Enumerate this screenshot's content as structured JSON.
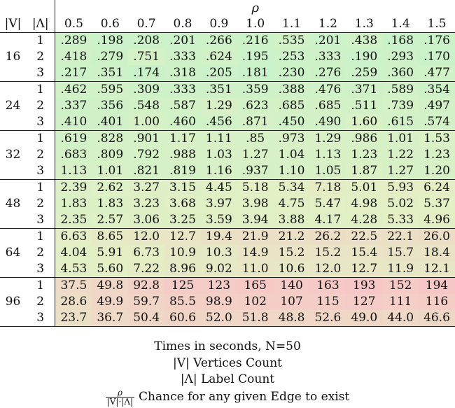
{
  "header": {
    "rho": "ρ",
    "v_label": "|V|",
    "l_label": "|Λ|",
    "columns": [
      "0.5",
      "0.6",
      "0.7",
      "0.8",
      "0.9",
      "1.0",
      "1.1",
      "1.2",
      "1.3",
      "1.4",
      "1.5"
    ]
  },
  "groups": [
    {
      "v": "16",
      "rows": [
        {
          "l": "1",
          "values": [
            ".289",
            ".198",
            ".208",
            ".201",
            ".266",
            ".216",
            ".535",
            ".201",
            ".438",
            ".168",
            ".176"
          ]
        },
        {
          "l": "2",
          "values": [
            ".418",
            ".279",
            ".751",
            ".333",
            ".624",
            ".195",
            ".253",
            ".333",
            ".190",
            ".293",
            ".170"
          ]
        },
        {
          "l": "3",
          "values": [
            ".217",
            ".351",
            ".174",
            ".318",
            ".205",
            ".181",
            ".230",
            ".276",
            ".259",
            ".360",
            ".477"
          ]
        }
      ]
    },
    {
      "v": "24",
      "rows": [
        {
          "l": "1",
          "values": [
            ".462",
            ".595",
            ".309",
            ".333",
            ".351",
            ".359",
            ".388",
            ".476",
            ".371",
            ".589",
            ".354"
          ]
        },
        {
          "l": "2",
          "values": [
            ".337",
            ".356",
            ".548",
            ".587",
            "1.29",
            ".623",
            ".685",
            ".685",
            ".511",
            ".739",
            ".497"
          ]
        },
        {
          "l": "3",
          "values": [
            ".410",
            ".401",
            "1.00",
            ".460",
            ".456",
            ".871",
            ".450",
            ".490",
            "1.60",
            ".615",
            ".574"
          ]
        }
      ]
    },
    {
      "v": "32",
      "rows": [
        {
          "l": "1",
          "values": [
            ".619",
            ".828",
            ".901",
            "1.17",
            "1.11",
            ".85",
            ".973",
            "1.29",
            ".986",
            "1.01",
            "1.53"
          ]
        },
        {
          "l": "2",
          "values": [
            ".683",
            ".809",
            ".792",
            ".988",
            "1.03",
            "1.27",
            "1.04",
            "1.13",
            "1.23",
            "1.22",
            "1.23"
          ]
        },
        {
          "l": "3",
          "values": [
            "1.13",
            "1.01",
            ".821",
            ".819",
            "1.16",
            ".937",
            "1.10",
            "1.05",
            "1.87",
            "1.27",
            "1.20"
          ]
        }
      ]
    },
    {
      "v": "48",
      "rows": [
        {
          "l": "1",
          "values": [
            "2.39",
            "2.62",
            "3.27",
            "3.15",
            "4.45",
            "5.18",
            "5.34",
            "7.18",
            "5.01",
            "5.93",
            "6.24"
          ]
        },
        {
          "l": "2",
          "values": [
            "1.83",
            "1.83",
            "3.23",
            "3.68",
            "3.97",
            "3.98",
            "4.75",
            "5.47",
            "4.98",
            "5.02",
            "5.37"
          ]
        },
        {
          "l": "3",
          "values": [
            "2.35",
            "2.57",
            "3.06",
            "3.25",
            "3.59",
            "3.94",
            "3.88",
            "4.17",
            "4.28",
            "5.33",
            "4.96"
          ]
        }
      ]
    },
    {
      "v": "64",
      "rows": [
        {
          "l": "1",
          "values": [
            "6.63",
            "8.65",
            "12.0",
            "12.7",
            "19.4",
            "21.9",
            "21.2",
            "26.2",
            "22.5",
            "22.1",
            "26.0"
          ]
        },
        {
          "l": "2",
          "values": [
            "4.04",
            "5.91",
            "6.73",
            "10.9",
            "10.3",
            "14.9",
            "15.2",
            "15.2",
            "15.4",
            "15.7",
            "18.4"
          ]
        },
        {
          "l": "3",
          "values": [
            "4.53",
            "5.60",
            "7.22",
            "8.96",
            "9.02",
            "11.0",
            "10.6",
            "12.0",
            "12.7",
            "11.9",
            "12.1"
          ]
        }
      ]
    },
    {
      "v": "96",
      "rows": [
        {
          "l": "1",
          "values": [
            "37.5",
            "49.8",
            "92.8",
            "125",
            "123",
            "165",
            "140",
            "163",
            "193",
            "152",
            "194"
          ]
        },
        {
          "l": "2",
          "values": [
            "28.6",
            "49.9",
            "59.7",
            "85.5",
            "98.9",
            "102",
            "107",
            "115",
            "127",
            "111",
            "116"
          ]
        },
        {
          "l": "3",
          "values": [
            "23.7",
            "36.7",
            "50.4",
            "60.6",
            "52.0",
            "51.8",
            "48.8",
            "52.6",
            "49.0",
            "44.0",
            "46.6"
          ]
        }
      ]
    }
  ],
  "footer": {
    "times": "Times in seconds, N=50",
    "vertices": "|V| Vertices Count",
    "labels": "|Λ| Label Count",
    "rho_num": "ρ",
    "rho_den": "|V|·|Λ|",
    "rho_desc": "Chance for any given Edge to exist"
  },
  "colors": {
    "low": "#c9f2c8",
    "mid": "#e3efc4",
    "high": "#f7c7c7"
  }
}
